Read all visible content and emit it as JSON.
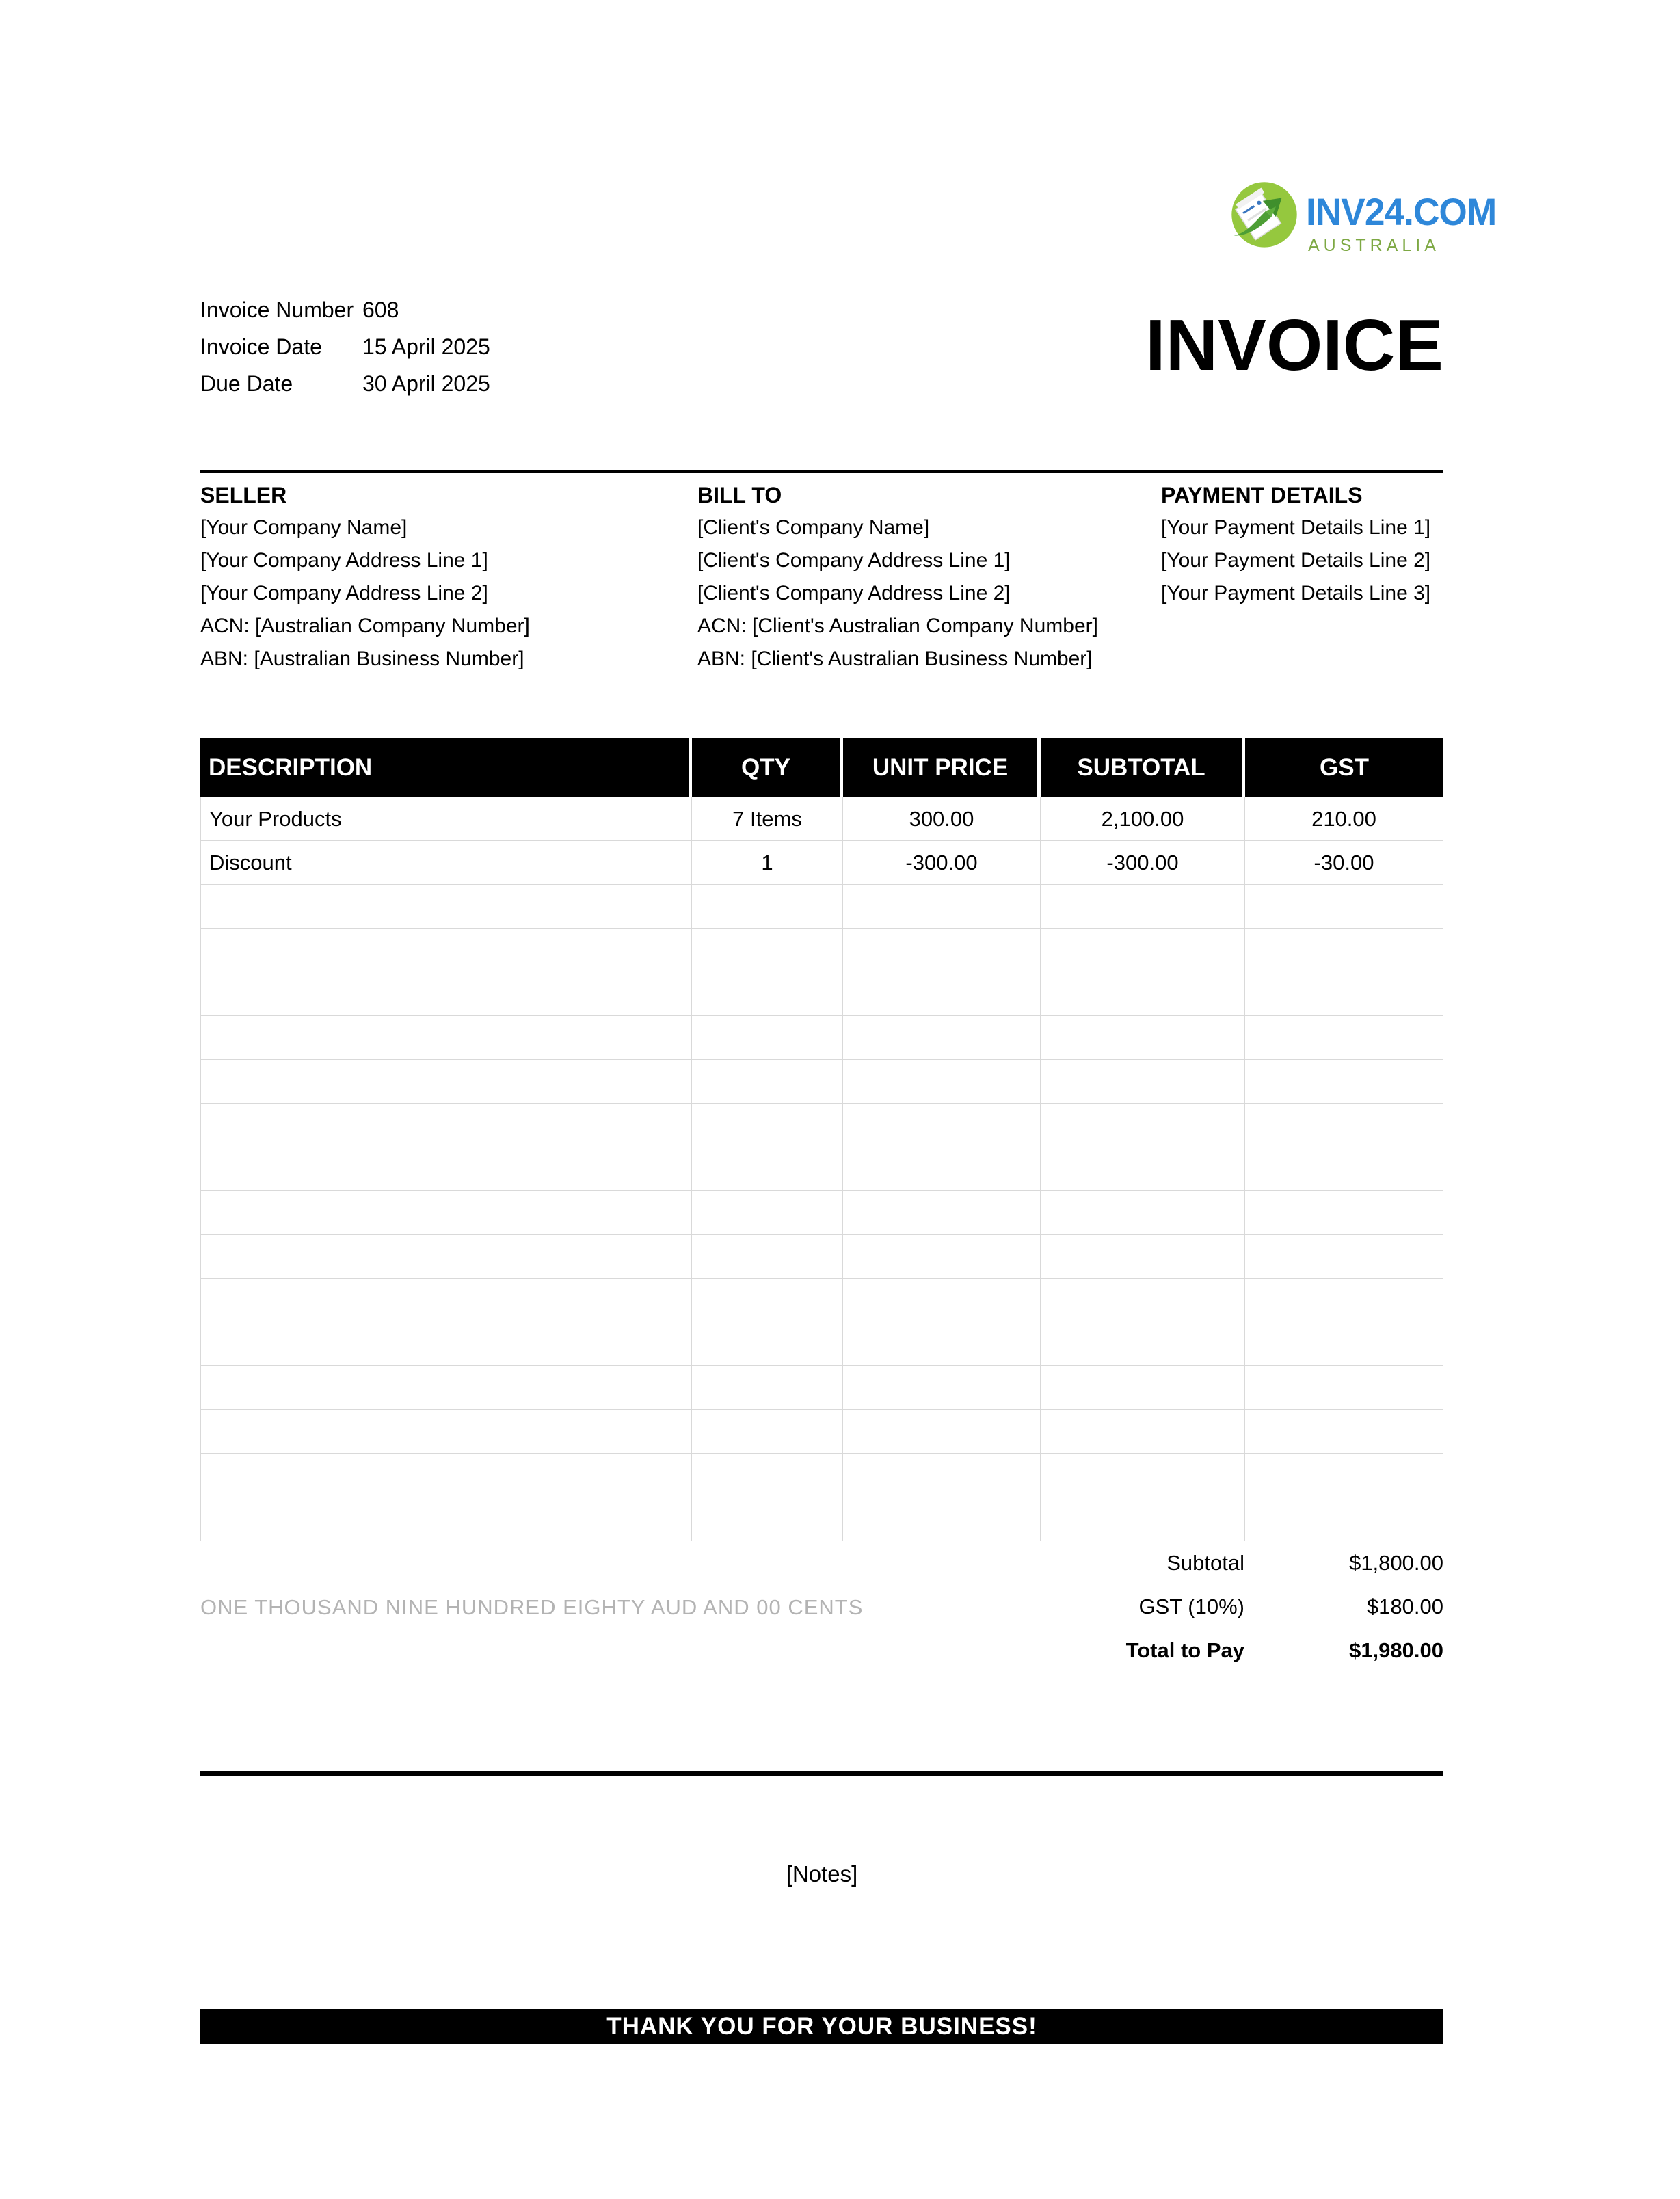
{
  "logo": {
    "brand": "INV24.COM",
    "region": "AUSTRALIA",
    "brand_color": "#2e87d9",
    "region_color": "#7da843",
    "icon_bg_color": "#95c83e",
    "icon_arrow_color": "#4d9e35",
    "icon_name": "invoice-paper-arrow-icon"
  },
  "title": "INVOICE",
  "meta": {
    "rows": [
      {
        "label": "Invoice Number",
        "value": "608"
      },
      {
        "label": "Invoice Date",
        "value": "15 April 2025"
      },
      {
        "label": "Due Date",
        "value": "30 April 2025"
      }
    ]
  },
  "parties": {
    "seller": {
      "heading": "SELLER",
      "lines": [
        "[Your Company Name]",
        "[Your Company Address Line 1]",
        "[Your Company Address Line 2]",
        "ACN: [Australian Company Number]",
        "ABN: [Australian Business Number]"
      ]
    },
    "bill_to": {
      "heading": "BILL TO",
      "lines": [
        "[Client's Company Name]",
        "[Client's Company Address  Line 1]",
        "[Client's Company Address  Line 2]",
        "ACN: [Client's Australian Company Number]",
        "ABN: [Client's Australian Business Number]"
      ]
    },
    "payment": {
      "heading": "PAYMENT DETAILS",
      "lines": [
        "[Your Payment Details Line 1]",
        "[Your Payment Details Line 2]",
        "[Your Payment Details Line 3]"
      ]
    }
  },
  "table": {
    "columns": [
      "DESCRIPTION",
      "QTY",
      "UNIT PRICE",
      "SUBTOTAL",
      "GST"
    ],
    "rows": [
      [
        "Your Products",
        "7 Items",
        "300.00",
        "2,100.00",
        "210.00"
      ],
      [
        "Discount",
        "1",
        "-300.00",
        "-300.00",
        "-30.00"
      ]
    ],
    "empty_row_count": 15,
    "header_bg": "#000000",
    "header_text_color": "#ffffff",
    "border_color": "#d9d9d9"
  },
  "totals": {
    "amount_in_words": "ONE THOUSAND NINE HUNDRED EIGHTY AUD AND 00 CENTS",
    "rows": [
      {
        "label": "Subtotal",
        "value": "$1,800.00"
      },
      {
        "label": "GST (10%)",
        "value": "$180.00"
      },
      {
        "label": "Total to Pay",
        "value": "$1,980.00"
      }
    ]
  },
  "notes": "[Notes]",
  "footer": "THANK YOU FOR YOUR BUSINESS!"
}
